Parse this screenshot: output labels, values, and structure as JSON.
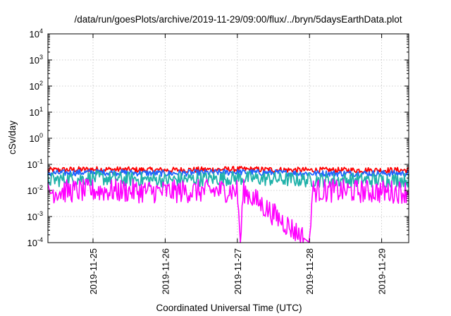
{
  "chart_data": {
    "type": "line",
    "title": "/data/run/goesPlots/archive/2019-11-29/09:00/flux/../bryn/5daysEarthData.plot",
    "xlabel": "Coordinated Universal Time (UTC)",
    "ylabel": "cSv/day",
    "yscale": "log",
    "ylim": [
      0.0001,
      10000
    ],
    "y_ticks": [
      {
        "value": 0.0001,
        "base": "10",
        "exp": "-4"
      },
      {
        "value": 0.001,
        "base": "10",
        "exp": "-3"
      },
      {
        "value": 0.01,
        "base": "10",
        "exp": "-2"
      },
      {
        "value": 0.1,
        "base": "10",
        "exp": "-1"
      },
      {
        "value": 1,
        "base": "10",
        "exp": "0"
      },
      {
        "value": 10,
        "base": "10",
        "exp": "1"
      },
      {
        "value": 100,
        "base": "10",
        "exp": "2"
      },
      {
        "value": 1000,
        "base": "10",
        "exp": "3"
      },
      {
        "value": 10000,
        "base": "10",
        "exp": "4"
      }
    ],
    "xlim": [
      "2019-11-24 09:00",
      "2019-11-29 09:00"
    ],
    "x_ticks": [
      "2019-11-25",
      "2019-11-26",
      "2019-11-27",
      "2019-11-28",
      "2019-11-29"
    ],
    "grid": true,
    "series": [
      {
        "color": "#ff0000",
        "x": [
          "2019-11-24 09:00",
          "2019-11-25 00:00",
          "2019-11-26 00:00",
          "2019-11-27 00:00",
          "2019-11-28 00:00",
          "2019-11-29 00:00",
          "2019-11-29 09:00"
        ],
        "values": [
          0.06,
          0.065,
          0.06,
          0.065,
          0.06,
          0.06,
          0.06
        ]
      },
      {
        "color": "#1e64ff",
        "x": [
          "2019-11-24 09:00",
          "2019-11-25 00:00",
          "2019-11-26 00:00",
          "2019-11-27 00:00",
          "2019-11-28 00:00",
          "2019-11-29 00:00",
          "2019-11-29 09:00"
        ],
        "values": [
          0.045,
          0.05,
          0.045,
          0.05,
          0.045,
          0.045,
          0.045
        ]
      },
      {
        "color": "#20b2aa",
        "x": [
          "2019-11-24 09:00",
          "2019-11-25 00:00",
          "2019-11-26 00:00",
          "2019-11-27 00:00",
          "2019-11-28 00:00",
          "2019-11-29 00:00",
          "2019-11-29 09:00"
        ],
        "values": [
          0.025,
          0.03,
          0.025,
          0.03,
          0.025,
          0.025,
          0.025
        ]
      },
      {
        "color": "#ff00ff",
        "x": [
          "2019-11-24 09:00",
          "2019-11-25 00:00",
          "2019-11-26 00:00",
          "2019-11-27 00:00",
          "2019-11-27 01:00",
          "2019-11-27 02:00",
          "2019-11-28 00:00",
          "2019-11-28 01:00",
          "2019-11-29 00:00",
          "2019-11-29 09:00"
        ],
        "values": [
          0.009,
          0.01,
          0.009,
          0.01,
          0.0001,
          0.01,
          0.0001,
          0.01,
          0.009,
          0.009
        ]
      }
    ]
  }
}
